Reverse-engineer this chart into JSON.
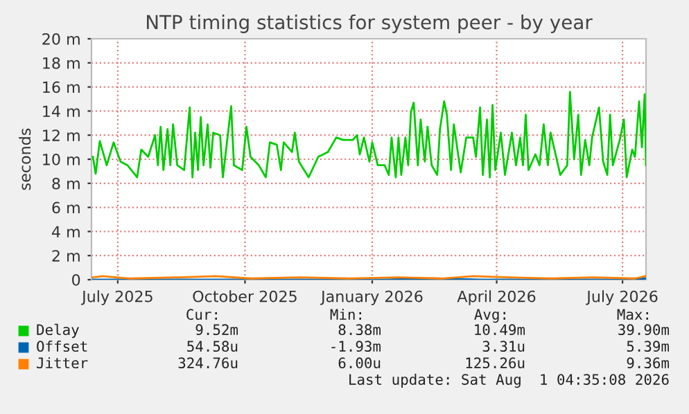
{
  "chart_data": {
    "type": "line",
    "title": "NTP timing statistics for system peer - by year",
    "ylabel": "seconds",
    "xlim": [
      "2025-06-12",
      "2026-07-18"
    ],
    "xticks": [
      {
        "value": "2025-07-01",
        "label": "July 2025"
      },
      {
        "value": "2025-10-01",
        "label": "October 2025"
      },
      {
        "value": "2026-01-01",
        "label": "January 2026"
      },
      {
        "value": "2026-04-01",
        "label": "April 2026"
      },
      {
        "value": "2026-07-01",
        "label": "July 2026"
      }
    ],
    "ylim": [
      0,
      20
    ],
    "yticks": [
      0,
      {
        "value": 2,
        "label": "2 m"
      },
      {
        "value": 4,
        "label": "4 m"
      },
      {
        "value": 6,
        "label": "6 m"
      },
      {
        "value": 8,
        "label": "8 m"
      },
      {
        "value": 10,
        "label": "10 m"
      },
      {
        "value": 12,
        "label": "12 m"
      },
      {
        "value": 14,
        "label": "14 m"
      },
      {
        "value": 16,
        "label": "16 m"
      },
      {
        "value": 18,
        "label": "18 m"
      },
      {
        "value": 20,
        "label": "20 m"
      }
    ],
    "grid": true,
    "legend": "bottom left",
    "marker": "none",
    "line_style": "solid",
    "series": [
      {
        "name": "Delay",
        "color": "#00cc00",
        "x": [
          "2025-06-13",
          "2025-06-15",
          "2025-06-18",
          "2025-06-23",
          "2025-06-28",
          "2025-07-03",
          "2025-07-08",
          "2025-07-15",
          "2025-07-18",
          "2025-07-23",
          "2025-07-28",
          "2025-07-30",
          "2025-08-01",
          "2025-08-03",
          "2025-08-06",
          "2025-08-08",
          "2025-08-10",
          "2025-08-13",
          "2025-08-18",
          "2025-08-22",
          "2025-08-24",
          "2025-08-26",
          "2025-08-28",
          "2025-08-30",
          "2025-09-01",
          "2025-09-04",
          "2025-09-06",
          "2025-09-08",
          "2025-09-13",
          "2025-09-15",
          "2025-09-21",
          "2025-09-23",
          "2025-09-29",
          "2025-10-02",
          "2025-10-05",
          "2025-10-11",
          "2025-10-16",
          "2025-10-19",
          "2025-10-24",
          "2025-10-27",
          "2025-10-29",
          "2025-11-04",
          "2025-11-06",
          "2025-11-09",
          "2025-11-16",
          "2025-11-23",
          "2025-11-30",
          "2025-12-06",
          "2025-12-11",
          "2025-12-18",
          "2025-12-21",
          "2025-12-23",
          "2025-12-26",
          "2025-12-30",
          "2026-01-01",
          "2026-01-05",
          "2026-01-10",
          "2026-01-13",
          "2026-01-15",
          "2026-01-18",
          "2026-01-20",
          "2026-01-22",
          "2026-01-25",
          "2026-01-27",
          "2026-01-29",
          "2026-01-31",
          "2026-02-03",
          "2026-02-05",
          "2026-02-08",
          "2026-02-10",
          "2026-02-13",
          "2026-02-17",
          "2026-02-19",
          "2026-02-22",
          "2026-02-24",
          "2026-02-27",
          "2026-03-01",
          "2026-03-06",
          "2026-03-10",
          "2026-03-15",
          "2026-03-17",
          "2026-03-20",
          "2026-03-22",
          "2026-03-25",
          "2026-03-27",
          "2026-03-29",
          "2026-03-31",
          "2026-04-04",
          "2026-04-07",
          "2026-04-12",
          "2026-04-15",
          "2026-04-18",
          "2026-04-20",
          "2026-04-22",
          "2026-04-24",
          "2026-04-29",
          "2026-05-02",
          "2026-05-05",
          "2026-05-08",
          "2026-05-10",
          "2026-05-17",
          "2026-05-22",
          "2026-05-24",
          "2026-05-27",
          "2026-05-30",
          "2026-06-01",
          "2026-06-04",
          "2026-06-07",
          "2026-06-09",
          "2026-06-14",
          "2026-06-17",
          "2026-06-20",
          "2026-06-22",
          "2026-06-24",
          "2026-06-29",
          "2026-07-02",
          "2026-07-04",
          "2026-07-08",
          "2026-07-10",
          "2026-07-13",
          "2026-07-15",
          "2026-07-17",
          "2026-07-18"
        ],
        "values": [
          10.2,
          8.8,
          11.5,
          9.5,
          11.4,
          9.8,
          9.5,
          8.5,
          10.8,
          10.2,
          12.0,
          9.5,
          12.7,
          9.1,
          12.5,
          9.5,
          12.9,
          9.5,
          9.1,
          14.3,
          8.5,
          12.2,
          9.1,
          13.5,
          9.5,
          12.9,
          9.3,
          12.2,
          12.0,
          8.5,
          14.4,
          9.5,
          9.1,
          12.7,
          10.2,
          9.5,
          8.5,
          11.4,
          11.2,
          9.1,
          11.4,
          10.6,
          12.2,
          9.8,
          8.5,
          10.2,
          10.6,
          11.8,
          11.6,
          11.6,
          12.0,
          10.4,
          11.8,
          9.8,
          11.4,
          9.5,
          9.5,
          8.7,
          11.8,
          8.5,
          11.8,
          8.7,
          11.8,
          9.5,
          13.9,
          14.7,
          9.5,
          13.3,
          9.8,
          12.7,
          9.5,
          8.7,
          12.5,
          14.8,
          13.7,
          9.1,
          12.9,
          8.9,
          11.8,
          11.8,
          10.2,
          14.3,
          8.7,
          13.3,
          8.5,
          14.5,
          9.1,
          12.2,
          8.7,
          12.2,
          9.5,
          11.8,
          9.5,
          13.7,
          9.1,
          10.4,
          9.5,
          12.9,
          9.5,
          12.2,
          8.7,
          9.5,
          15.6,
          10.0,
          13.7,
          8.7,
          11.6,
          9.5,
          11.8,
          14.3,
          9.8,
          8.7,
          13.7,
          9.5,
          11.6,
          13.3,
          8.5,
          10.8,
          10.2,
          14.8,
          11.0,
          15.4,
          9.5
        ]
      },
      {
        "name": "Offset",
        "color": "#0066b3",
        "x": [
          "2025-06-13",
          "2025-07-15",
          "2025-08-20",
          "2025-09-25",
          "2025-10-30",
          "2025-12-05",
          "2026-01-10",
          "2026-02-15",
          "2026-03-20",
          "2026-04-25",
          "2026-05-30",
          "2026-07-05",
          "2026-07-18"
        ],
        "values": [
          0.0,
          0.0,
          0.0,
          0.0,
          0.0,
          0.0,
          0.0,
          0.1,
          0.0,
          0.0,
          0.0,
          0.0,
          0.1
        ]
      },
      {
        "name": "Jitter",
        "color": "#ff8000",
        "x": [
          "2025-06-13",
          "2025-06-20",
          "2025-07-10",
          "2025-08-15",
          "2025-09-10",
          "2025-10-05",
          "2025-11-10",
          "2025-12-15",
          "2026-01-20",
          "2026-02-20",
          "2026-03-15",
          "2026-04-10",
          "2026-05-10",
          "2026-06-10",
          "2026-07-10",
          "2026-07-18"
        ],
        "values": [
          0.2,
          0.3,
          0.1,
          0.2,
          0.3,
          0.1,
          0.2,
          0.1,
          0.2,
          0.1,
          0.3,
          0.2,
          0.1,
          0.2,
          0.1,
          0.3
        ]
      }
    ],
    "annotations": [
      "Cur:",
      "Min:",
      "Avg:",
      "Max:",
      "9.52m",
      "8.38m",
      "10.49m",
      "39.90m",
      "54.58u",
      "-1.93m",
      "3.31u",
      "5.39m",
      "324.76u",
      "6.00u",
      "125.26u",
      "9.36m",
      "Last update: Sat Aug  1 04:35:08 2026"
    ]
  }
}
